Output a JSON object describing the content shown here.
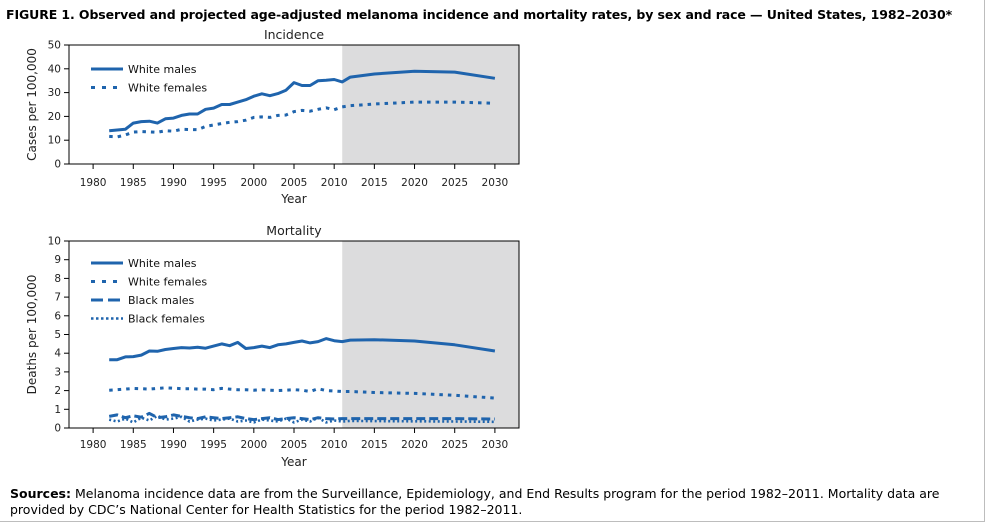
{
  "figure": {
    "title": "FIGURE 1. Observed and projected age-adjusted melanoma incidence and mortality rates, by sex and race — United States, 1982–2030*",
    "sources_label": "Sources:",
    "sources_text": "Melanoma incidence data are from the Surveillance, Epidemiology, and End Results program for the period 1982–2011. Mortality data are provided by CDC’s National Center for Health Statistics for the period 1982–2011."
  },
  "colors": {
    "line": "#1f64ad",
    "projection_shade": "#dcdcdd",
    "axis": "#000000"
  },
  "chart_data": [
    {
      "type": "line",
      "title": "Incidence",
      "xlabel": "Year",
      "ylabel": "Cases per 100,000",
      "xlim": [
        1977,
        2033
      ],
      "ylim": [
        0,
        50
      ],
      "xticks": [
        1980,
        1985,
        1990,
        1995,
        2000,
        2005,
        2010,
        2015,
        2020,
        2025,
        2030
      ],
      "yticks": [
        0,
        10,
        20,
        30,
        40,
        50
      ],
      "projection_start": 2011,
      "legend_position": "top-left",
      "series": [
        {
          "name": "White males",
          "style": "solid",
          "x": [
            1982,
            1983,
            1984,
            1985,
            1986,
            1987,
            1988,
            1989,
            1990,
            1991,
            1992,
            1993,
            1994,
            1995,
            1996,
            1997,
            1998,
            1999,
            2000,
            2001,
            2002,
            2003,
            2004,
            2005,
            2006,
            2007,
            2008,
            2009,
            2010,
            2011,
            2012,
            2015,
            2020,
            2025,
            2030
          ],
          "values": [
            14,
            14.3,
            14.6,
            17.2,
            17.8,
            18,
            17.2,
            19,
            19.3,
            20.4,
            21,
            21,
            23,
            23.5,
            25,
            25,
            26,
            27,
            28.5,
            29.5,
            28.7,
            29.6,
            31,
            34.2,
            33,
            33,
            35,
            35.2,
            35.5,
            34.5,
            36.5,
            37.8,
            39,
            38.6,
            36
          ]
        },
        {
          "name": "White females",
          "style": "dotted",
          "x": [
            1982,
            1983,
            1984,
            1985,
            1986,
            1987,
            1988,
            1989,
            1990,
            1991,
            1992,
            1993,
            1994,
            1995,
            1996,
            1997,
            1998,
            1999,
            2000,
            2001,
            2002,
            2003,
            2004,
            2005,
            2006,
            2007,
            2008,
            2009,
            2010,
            2011,
            2012,
            2015,
            2020,
            2025,
            2030
          ],
          "values": [
            11.6,
            11.4,
            12.2,
            13.4,
            13.6,
            13.5,
            13.3,
            14,
            13.8,
            14.6,
            14.5,
            14.4,
            15.8,
            16.4,
            17,
            17.5,
            17.8,
            18.4,
            19.6,
            19.8,
            19.6,
            20.4,
            20.6,
            22,
            22.5,
            22.2,
            23,
            23.6,
            22.8,
            24,
            24.5,
            25.2,
            26,
            26,
            25.5
          ]
        }
      ]
    },
    {
      "type": "line",
      "title": "Mortality",
      "xlabel": "Year",
      "ylabel": "Deaths per 100,000",
      "xlim": [
        1977,
        2033
      ],
      "ylim": [
        0,
        10
      ],
      "xticks": [
        1980,
        1985,
        1990,
        1995,
        2000,
        2005,
        2010,
        2015,
        2020,
        2025,
        2030
      ],
      "yticks": [
        0,
        1,
        2,
        3,
        4,
        5,
        6,
        7,
        8,
        9,
        10
      ],
      "projection_start": 2011,
      "legend_position": "top-left",
      "series": [
        {
          "name": "White males",
          "style": "solid",
          "x": [
            1982,
            1983,
            1984,
            1985,
            1986,
            1987,
            1988,
            1989,
            1990,
            1991,
            1992,
            1993,
            1994,
            1995,
            1996,
            1997,
            1998,
            1999,
            2000,
            2001,
            2002,
            2003,
            2004,
            2005,
            2006,
            2007,
            2008,
            2009,
            2010,
            2011,
            2012,
            2015,
            2020,
            2025,
            2030
          ],
          "values": [
            3.65,
            3.65,
            3.8,
            3.82,
            3.9,
            4.12,
            4.1,
            4.2,
            4.25,
            4.3,
            4.28,
            4.32,
            4.27,
            4.38,
            4.5,
            4.4,
            4.58,
            4.25,
            4.3,
            4.38,
            4.3,
            4.45,
            4.5,
            4.58,
            4.65,
            4.55,
            4.62,
            4.78,
            4.67,
            4.62,
            4.7,
            4.72,
            4.65,
            4.45,
            4.12
          ]
        },
        {
          "name": "White females",
          "style": "dotted",
          "x": [
            1982,
            1983,
            1984,
            1985,
            1986,
            1987,
            1988,
            1989,
            1990,
            1991,
            1992,
            1993,
            1994,
            1995,
            1996,
            1997,
            1998,
            1999,
            2000,
            2001,
            2002,
            2003,
            2004,
            2005,
            2006,
            2007,
            2008,
            2009,
            2010,
            2011,
            2012,
            2015,
            2020,
            2025,
            2030
          ],
          "values": [
            2.02,
            2.05,
            2.08,
            2.12,
            2.1,
            2.08,
            2.12,
            2.15,
            2.13,
            2.1,
            2.1,
            2.08,
            2.08,
            2.05,
            2.12,
            2.08,
            2.05,
            2.05,
            2.02,
            2.05,
            2.02,
            2.0,
            2.02,
            2.05,
            2.02,
            1.95,
            2.1,
            2.0,
            1.98,
            1.95,
            1.95,
            1.9,
            1.85,
            1.75,
            1.6
          ]
        },
        {
          "name": "Black males",
          "style": "dashed",
          "x": [
            1982,
            1983,
            1984,
            1985,
            1986,
            1987,
            1988,
            1989,
            1990,
            1991,
            1992,
            1993,
            1994,
            1995,
            1996,
            1997,
            1998,
            1999,
            2000,
            2001,
            2002,
            2003,
            2004,
            2005,
            2006,
            2007,
            2008,
            2009,
            2010,
            2011,
            2012,
            2015,
            2020,
            2025,
            2030
          ],
          "values": [
            0.62,
            0.7,
            0.55,
            0.65,
            0.58,
            0.78,
            0.55,
            0.6,
            0.7,
            0.62,
            0.55,
            0.5,
            0.6,
            0.55,
            0.5,
            0.55,
            0.6,
            0.5,
            0.45,
            0.5,
            0.55,
            0.45,
            0.5,
            0.55,
            0.5,
            0.45,
            0.55,
            0.5,
            0.48,
            0.5,
            0.5,
            0.5,
            0.5,
            0.5,
            0.48
          ]
        },
        {
          "name": "Black females",
          "style": "dotted-fine",
          "x": [
            1982,
            1983,
            1984,
            1985,
            1986,
            1987,
            1988,
            1989,
            1990,
            1991,
            1992,
            1993,
            1994,
            1995,
            1996,
            1997,
            1998,
            1999,
            2000,
            2001,
            2002,
            2003,
            2004,
            2005,
            2006,
            2007,
            2008,
            2009,
            2010,
            2011,
            2012,
            2015,
            2020,
            2025,
            2030
          ],
          "values": [
            0.45,
            0.35,
            0.5,
            0.3,
            0.55,
            0.4,
            0.65,
            0.45,
            0.5,
            0.6,
            0.35,
            0.45,
            0.5,
            0.4,
            0.45,
            0.5,
            0.35,
            0.4,
            0.3,
            0.45,
            0.4,
            0.35,
            0.5,
            0.3,
            0.45,
            0.35,
            0.55,
            0.3,
            0.4,
            0.35,
            0.38,
            0.37,
            0.36,
            0.35,
            0.33
          ]
        }
      ]
    }
  ]
}
